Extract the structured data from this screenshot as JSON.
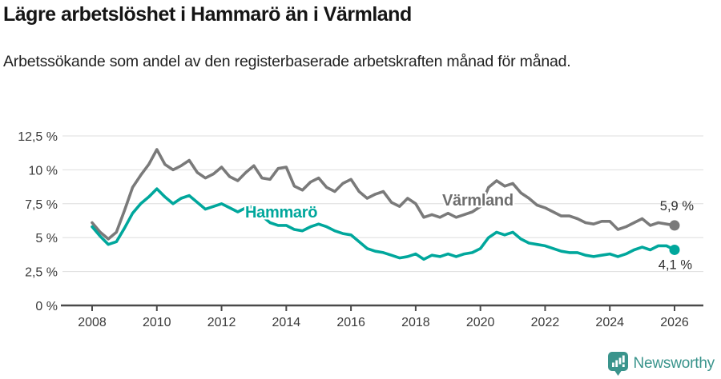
{
  "header": {
    "title": "Lägre arbetslöshet i Hammarö än i Värmland",
    "subtitle": "Arbetssökande som andel av den registerbaserade arbetskraften månad för månad."
  },
  "chart_data": {
    "type": "line",
    "title": "Lägre arbetslöshet i Hammarö än i Värmland",
    "subtitle": "Arbetssökande som andel av den registerbaserade arbetskraften månad för månad.",
    "grid": "horizontal",
    "legend": "inline-labels",
    "x_axis": {
      "ticks": [
        2008,
        2010,
        2012,
        2014,
        2016,
        2018,
        2020,
        2022,
        2024,
        2026
      ],
      "tick_labels": [
        "2008",
        "2010",
        "2012",
        "2014",
        "2016",
        "2018",
        "2020",
        "2022",
        "2024",
        "2026"
      ],
      "range": [
        2007.6,
        2026.9
      ]
    },
    "y_axis": {
      "ticks": [
        0,
        2.5,
        5,
        7.5,
        10,
        12.5
      ],
      "tick_labels": [
        "0 %",
        "2,5 %",
        "5 %",
        "7,5 %",
        "10 %",
        "12,5 %"
      ],
      "range": [
        0,
        12.5
      ],
      "unit": "%"
    },
    "sampling": {
      "x_start": 2008.0,
      "x_step": 0.25,
      "note": "quarterly estimates read from monthly curve"
    },
    "series": [
      {
        "name": "Värmland",
        "color": "#7a7a7a",
        "label_color": "#6e6e6e",
        "end_label": "5,9 %",
        "end_value": 5.9,
        "values": [
          6.1,
          5.4,
          4.9,
          5.4,
          7.0,
          8.7,
          9.6,
          10.4,
          11.5,
          10.4,
          10.0,
          10.3,
          10.7,
          9.8,
          9.4,
          9.7,
          10.2,
          9.5,
          9.2,
          9.8,
          10.3,
          9.4,
          9.3,
          10.1,
          10.2,
          8.8,
          8.5,
          9.1,
          9.4,
          8.7,
          8.4,
          9.0,
          9.3,
          8.4,
          7.9,
          8.2,
          8.4,
          7.6,
          7.3,
          7.9,
          7.5,
          6.5,
          6.7,
          6.5,
          6.8,
          6.5,
          6.7,
          6.9,
          7.3,
          8.7,
          9.2,
          8.8,
          9.0,
          8.3,
          7.9,
          7.4,
          7.2,
          6.9,
          6.6,
          6.6,
          6.4,
          6.1,
          6.0,
          6.2,
          6.2,
          5.6,
          5.8,
          6.1,
          6.4,
          5.9,
          6.1,
          6.0,
          5.9
        ]
      },
      {
        "name": "Hammarö",
        "color": "#00a79c",
        "label_color": "#00a79c",
        "end_label": "4,1 %",
        "end_value": 4.1,
        "values": [
          5.8,
          5.1,
          4.5,
          4.7,
          5.7,
          6.8,
          7.5,
          8.0,
          8.6,
          8.0,
          7.5,
          7.9,
          8.1,
          7.6,
          7.1,
          7.3,
          7.5,
          7.2,
          6.9,
          7.2,
          7.3,
          6.6,
          6.1,
          5.9,
          5.9,
          5.6,
          5.5,
          5.8,
          6.0,
          5.8,
          5.5,
          5.3,
          5.2,
          4.7,
          4.2,
          4.0,
          3.9,
          3.7,
          3.5,
          3.6,
          3.8,
          3.4,
          3.7,
          3.6,
          3.8,
          3.6,
          3.8,
          3.9,
          4.2,
          5.0,
          5.4,
          5.2,
          5.4,
          4.9,
          4.6,
          4.5,
          4.4,
          4.2,
          4.0,
          3.9,
          3.9,
          3.7,
          3.6,
          3.7,
          3.8,
          3.6,
          3.8,
          4.1,
          4.3,
          4.1,
          4.4,
          4.4,
          4.1
        ]
      }
    ]
  },
  "footer": {
    "brand": "Newsworthy",
    "brand_color": "#3a948c"
  }
}
